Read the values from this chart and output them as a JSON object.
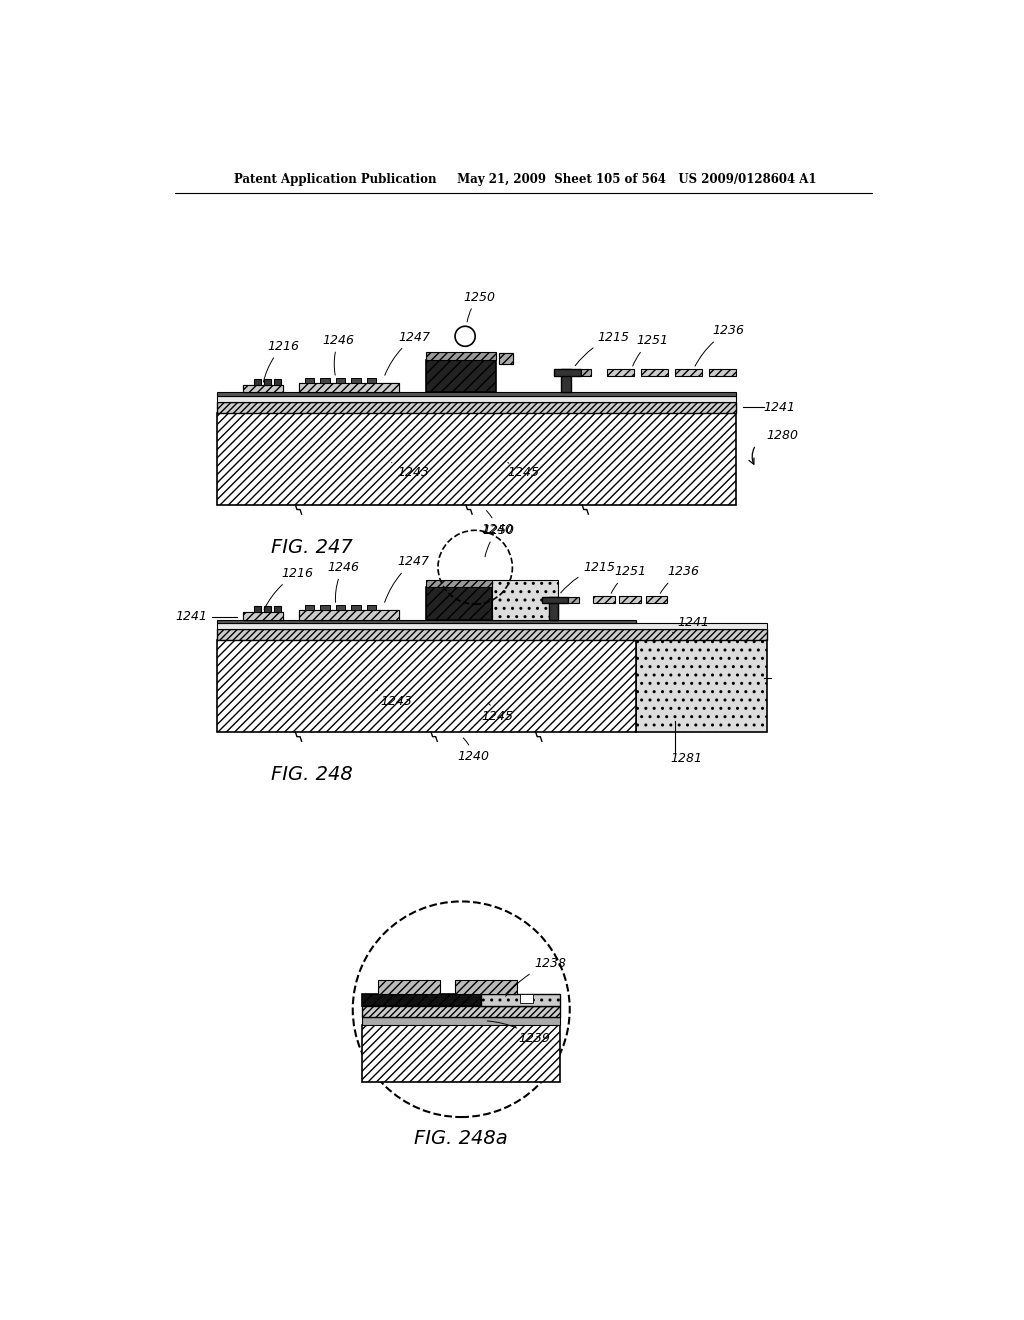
{
  "header": "Patent Application Publication     May 21, 2009  Sheet 105 of 564   US 2009/0128604 A1",
  "fig247_label": "FIG. 247",
  "fig248_label": "FIG. 248",
  "fig248a_label": "FIG. 248a",
  "bg": "#ffffff"
}
